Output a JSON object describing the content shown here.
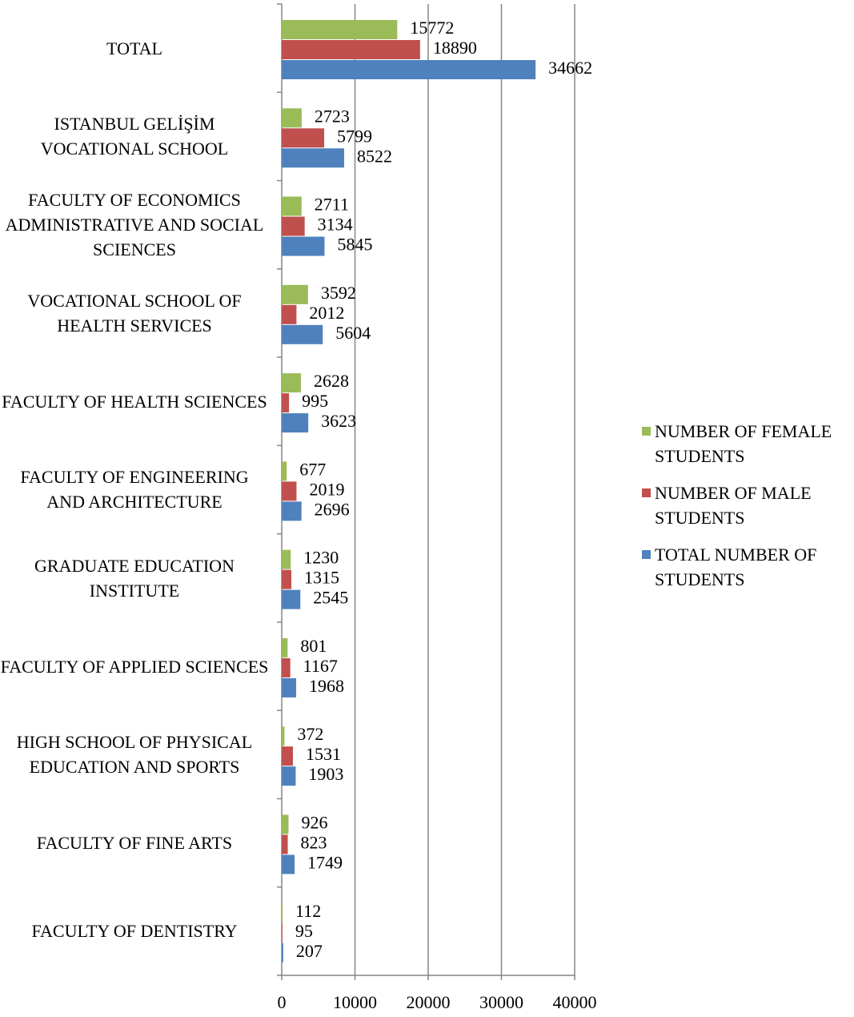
{
  "chart_data": {
    "type": "bar",
    "orientation": "horizontal",
    "categories": [
      "TOTAL",
      "ISTANBUL GELİŞİM VOCATIONAL SCHOOL",
      "FACULTY OF ECONOMICS ADMINISTRATIVE AND SOCIAL SCIENCES",
      "VOCATIONAL SCHOOL OF HEALTH SERVICES",
      "FACULTY OF HEALTH SCIENCES",
      "FACULTY OF ENGINEERING AND ARCHITECTURE",
      "GRADUATE EDUCATION INSTITUTE",
      "FACULTY OF APPLIED SCIENCES",
      "HIGH SCHOOL OF PHYSICAL EDUCATION AND SPORTS",
      "FACULTY OF FINE ARTS",
      "FACULTY OF DENTISTRY"
    ],
    "series": [
      {
        "name": "NUMBER OF FEMALE STUDENTS",
        "color": "#9bbb59",
        "values": [
          15772,
          2723,
          2711,
          3592,
          2628,
          677,
          1230,
          801,
          372,
          926,
          112
        ]
      },
      {
        "name": "NUMBER OF MALE STUDENTS",
        "color": "#c0504d",
        "values": [
          18890,
          5799,
          3134,
          2012,
          995,
          2019,
          1315,
          1167,
          1531,
          823,
          95
        ]
      },
      {
        "name": "TOTAL NUMBER OF STUDENTS",
        "color": "#4f81bd",
        "values": [
          34662,
          8522,
          5845,
          5604,
          3623,
          2696,
          2545,
          1968,
          1903,
          1749,
          207
        ]
      }
    ],
    "xlim": [
      0,
      40000
    ],
    "xticks": [
      0,
      10000,
      20000,
      30000,
      40000
    ],
    "grid": true,
    "legend": "right"
  }
}
